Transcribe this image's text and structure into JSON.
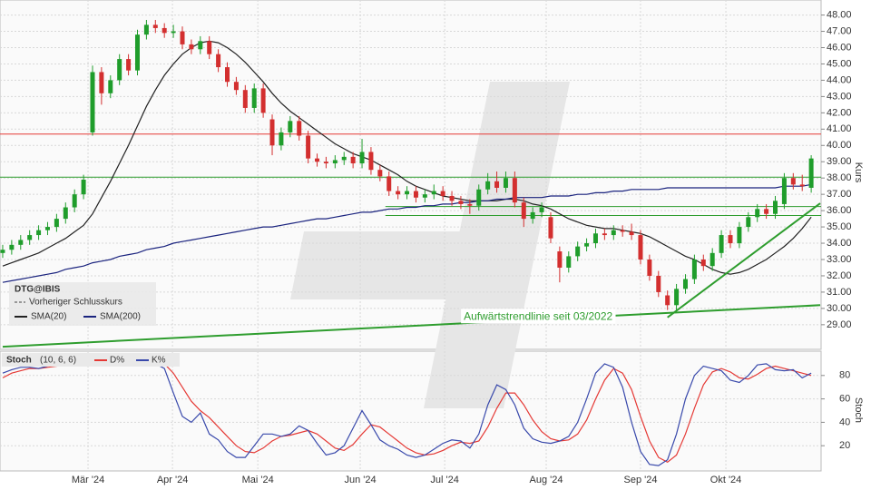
{
  "chart_data": [
    {
      "type": "candlestick",
      "title": "DTG@IBIS",
      "legend_note": "Vorheriger Schlusskurs",
      "ylabel": "Kurs",
      "up_color": "#1f9d2b",
      "down_color": "#d32f2f",
      "xlim": [
        -0.3,
        91.1
      ],
      "ylim": [
        27.6,
        48.7
      ],
      "xticks": [
        {
          "value": 9.5,
          "label": "Mär '24"
        },
        {
          "value": 18.9,
          "label": "Apr '24"
        },
        {
          "value": 28.4,
          "label": "Mai '24"
        },
        {
          "value": 39.8,
          "label": "Jun '24"
        },
        {
          "value": 49.2,
          "label": "Jul '24"
        },
        {
          "value": 60.5,
          "label": "Aug '24"
        },
        {
          "value": 71,
          "label": "Sep '24"
        },
        {
          "value": 80.5,
          "label": "Okt '24"
        }
      ],
      "yticks": [
        {
          "value": 29,
          "label": "29.00"
        },
        {
          "value": 30,
          "label": "30.00"
        },
        {
          "value": 31,
          "label": "31.00"
        },
        {
          "value": 32,
          "label": "32.00"
        },
        {
          "value": 33,
          "label": "33.00"
        },
        {
          "value": 34,
          "label": "34.00"
        },
        {
          "value": 35,
          "label": "35.00"
        },
        {
          "value": 36,
          "label": "36.00"
        },
        {
          "value": 37,
          "label": "37.00"
        },
        {
          "value": 38,
          "label": "38.00"
        },
        {
          "value": 39,
          "label": "39.00"
        },
        {
          "value": 40,
          "label": "40.00"
        },
        {
          "value": 41,
          "label": "41.00"
        },
        {
          "value": 42,
          "label": "42.00"
        },
        {
          "value": 43,
          "label": "43.00"
        },
        {
          "value": 44,
          "label": "44.00"
        },
        {
          "value": 45,
          "label": "45.00"
        },
        {
          "value": 46,
          "label": "46.00"
        },
        {
          "value": 47,
          "label": "47.00"
        },
        {
          "value": 48,
          "label": "48.00"
        }
      ],
      "grid": true,
      "open": [
        33.4,
        33.6,
        33.9,
        34.2,
        34.5,
        34.8,
        35.0,
        35.5,
        36.2,
        37.0,
        40.8,
        44.5,
        43.2,
        44.0,
        45.3,
        44.6,
        46.8,
        47.4,
        47.2,
        46.9,
        47.0,
        46.2,
        45.9,
        46.4,
        45.6,
        44.8,
        43.9,
        43.4,
        42.3,
        43.5,
        41.6,
        40.0,
        40.8,
        41.5,
        40.6,
        39.2,
        39.0,
        38.9,
        39.1,
        39.3,
        38.9,
        39.6,
        38.5,
        38.1,
        37.2,
        37.0,
        37.2,
        36.8,
        37.0,
        37.2,
        36.9,
        36.6,
        36.4,
        36.3,
        37.3,
        37.8,
        37.4,
        38.0,
        36.5,
        35.5,
        35.9,
        35.6,
        33.5,
        32.5,
        33.2,
        33.8,
        34.0,
        34.6,
        34.5,
        34.8,
        34.7,
        34.5,
        33.0,
        32.0,
        30.8,
        30.2,
        31.2,
        31.8,
        33.0,
        32.6,
        33.4,
        34.5,
        34.0,
        35.0,
        35.6,
        36.1,
        35.8,
        36.4,
        38.0,
        37.6,
        37.4
      ],
      "high": [
        33.9,
        34.2,
        34.5,
        34.8,
        35.1,
        35.3,
        35.8,
        36.5,
        37.3,
        38.2,
        44.9,
        44.8,
        44.3,
        45.6,
        45.6,
        47.1,
        47.7,
        47.7,
        47.5,
        47.4,
        47.3,
        46.5,
        46.7,
        46.7,
        45.9,
        45.1,
        44.2,
        43.7,
        43.8,
        43.8,
        41.9,
        41.1,
        41.8,
        41.8,
        40.9,
        39.5,
        39.3,
        39.4,
        39.6,
        39.6,
        40.4,
        39.9,
        38.8,
        38.4,
        37.5,
        37.5,
        37.5,
        37.3,
        37.6,
        37.5,
        37.2,
        36.9,
        36.7,
        37.6,
        38.3,
        38.4,
        38.4,
        38.4,
        36.8,
        36.2,
        36.5,
        35.9,
        33.8,
        33.5,
        34.1,
        34.3,
        34.9,
        34.9,
        35.1,
        35.1,
        35.2,
        34.8,
        33.3,
        32.3,
        31.1,
        31.5,
        32.1,
        33.3,
        33.3,
        33.7,
        34.8,
        34.8,
        35.3,
        35.9,
        36.4,
        36.4,
        36.9,
        38.3,
        38.3,
        38.2,
        39.4
      ],
      "low": [
        33.1,
        33.3,
        33.6,
        33.9,
        34.2,
        34.5,
        34.7,
        35.2,
        35.9,
        36.7,
        40.6,
        42.5,
        42.9,
        43.7,
        44.3,
        44.3,
        46.5,
        46.9,
        46.6,
        46.6,
        45.9,
        45.6,
        45.6,
        45.3,
        44.5,
        43.6,
        43.1,
        42.0,
        42.0,
        41.7,
        39.4,
        39.7,
        40.5,
        40.3,
        38.9,
        38.7,
        38.6,
        38.6,
        38.8,
        38.6,
        38.6,
        38.2,
        37.8,
        36.9,
        36.7,
        36.7,
        36.5,
        36.5,
        36.7,
        36.6,
        36.3,
        36.1,
        35.8,
        36.0,
        37.0,
        37.1,
        37.1,
        36.2,
        35.0,
        35.2,
        35.6,
        34.0,
        31.6,
        32.2,
        32.9,
        33.5,
        33.7,
        34.2,
        34.2,
        34.4,
        34.2,
        32.7,
        31.7,
        30.7,
        29.9,
        29.9,
        30.9,
        31.5,
        32.3,
        32.3,
        33.1,
        33.7,
        33.7,
        34.7,
        35.3,
        35.5,
        35.5,
        36.1,
        37.3,
        37.2,
        37.1
      ],
      "close": [
        33.6,
        33.9,
        34.2,
        34.5,
        34.8,
        35.0,
        35.5,
        36.2,
        37.0,
        37.9,
        44.5,
        43.2,
        44.0,
        45.3,
        44.6,
        46.8,
        47.4,
        47.2,
        46.9,
        47.0,
        46.2,
        45.9,
        46.4,
        45.6,
        44.8,
        43.9,
        43.4,
        42.3,
        43.5,
        42.0,
        40.0,
        40.8,
        41.5,
        40.6,
        39.2,
        39.0,
        38.9,
        39.1,
        39.3,
        38.9,
        39.6,
        38.5,
        38.1,
        37.2,
        37.0,
        37.2,
        36.8,
        37.0,
        37.2,
        36.9,
        36.6,
        36.4,
        36.3,
        37.3,
        37.8,
        37.4,
        38.0,
        36.5,
        35.5,
        35.9,
        36.2,
        34.3,
        32.5,
        33.2,
        33.8,
        34.0,
        34.6,
        34.5,
        34.8,
        34.7,
        34.5,
        33.0,
        32.0,
        31.0,
        30.2,
        31.2,
        31.8,
        33.0,
        32.6,
        33.4,
        34.5,
        34.0,
        35.0,
        35.6,
        36.1,
        35.8,
        36.6,
        38.0,
        37.6,
        37.5,
        39.2
      ],
      "series": [
        {
          "name": "SMA(20)",
          "color": "#222222",
          "values": [
            32.6,
            32.8,
            33.0,
            33.2,
            33.4,
            33.7,
            34.0,
            34.3,
            34.7,
            35.1,
            35.8,
            36.8,
            37.8,
            38.9,
            40.0,
            41.2,
            42.4,
            43.4,
            44.3,
            45.0,
            45.6,
            46.0,
            46.3,
            46.4,
            46.3,
            46.0,
            45.6,
            45.1,
            44.5,
            43.9,
            43.2,
            42.6,
            42.1,
            41.7,
            41.3,
            40.9,
            40.5,
            40.1,
            39.8,
            39.5,
            39.3,
            39.1,
            38.8,
            38.5,
            38.2,
            37.8,
            37.5,
            37.3,
            37.1,
            36.9,
            36.8,
            36.7,
            36.6,
            36.6,
            36.6,
            36.6,
            36.7,
            36.7,
            36.6,
            36.4,
            36.3,
            36.1,
            35.8,
            35.5,
            35.3,
            35.1,
            35.0,
            34.9,
            34.9,
            34.8,
            34.7,
            34.6,
            34.4,
            34.1,
            33.8,
            33.5,
            33.2,
            33.0,
            32.7,
            32.4,
            32.2,
            32.1,
            32.2,
            32.4,
            32.7,
            33.0,
            33.4,
            33.8,
            34.3,
            34.9,
            35.6
          ]
        },
        {
          "name": "SMA(200)",
          "color": "#1a237e",
          "values": [
            31.6,
            31.7,
            31.8,
            31.9,
            32.0,
            32.1,
            32.2,
            32.4,
            32.5,
            32.6,
            32.8,
            32.9,
            33.0,
            33.2,
            33.3,
            33.4,
            33.6,
            33.7,
            33.8,
            34.0,
            34.1,
            34.2,
            34.3,
            34.4,
            34.5,
            34.6,
            34.7,
            34.8,
            34.9,
            35.0,
            35.0,
            35.1,
            35.2,
            35.3,
            35.4,
            35.5,
            35.5,
            35.6,
            35.7,
            35.8,
            35.9,
            35.9,
            36.0,
            36.1,
            36.1,
            36.2,
            36.2,
            36.3,
            36.3,
            36.4,
            36.4,
            36.5,
            36.5,
            36.6,
            36.6,
            36.7,
            36.7,
            36.8,
            36.8,
            36.8,
            36.8,
            36.9,
            36.9,
            36.9,
            37.0,
            37.0,
            37.1,
            37.1,
            37.2,
            37.2,
            37.3,
            37.3,
            37.3,
            37.3,
            37.4,
            37.4,
            37.4,
            37.4,
            37.4,
            37.4,
            37.4,
            37.4,
            37.4,
            37.4,
            37.4,
            37.4,
            37.4,
            37.5,
            37.5,
            37.5,
            37.6
          ]
        }
      ],
      "levels": [
        {
          "value": 40.7,
          "color": "#e53935"
        },
        {
          "value": 38.05,
          "color": "#2e9d2e"
        },
        {
          "value": 36.25,
          "color": "#2e9d2e",
          "from": 42.6
        },
        {
          "value": 35.7,
          "color": "#2e9d2e",
          "from": 42.6
        }
      ],
      "trendlines": [
        {
          "x": [
            74,
            91
          ],
          "y": [
            29.45,
            36.45
          ],
          "color": "#2e9d2e"
        },
        {
          "x": [
            0,
            91
          ],
          "y": [
            27.65,
            30.2
          ],
          "color": "#2e9d2e",
          "label": "Aufwärtstrendlinie seit 03/2022"
        }
      ]
    },
    {
      "type": "line",
      "title": "Stoch",
      "subtitle": "(10, 6, 6)",
      "ylabel": "Stoch",
      "ylim": [
        0,
        100
      ],
      "yticks": [
        20,
        40,
        60,
        80
      ],
      "grid": true,
      "series": [
        {
          "name": "D%",
          "color": "#e53935",
          "values": [
            78,
            82,
            84,
            86,
            86,
            87,
            88,
            89,
            90,
            90,
            90,
            90,
            90,
            91,
            92,
            93,
            93,
            92,
            90,
            82,
            70,
            58,
            50,
            44,
            36,
            28,
            20,
            15,
            14,
            18,
            24,
            28,
            29,
            31,
            33,
            30,
            24,
            18,
            16,
            21,
            30,
            38,
            36,
            30,
            24,
            18,
            14,
            12,
            13,
            16,
            20,
            23,
            22,
            24,
            36,
            52,
            65,
            65,
            55,
            42,
            32,
            26,
            24,
            25,
            30,
            42,
            60,
            76,
            86,
            82,
            68,
            45,
            24,
            10,
            6,
            12,
            30,
            52,
            72,
            83,
            86,
            83,
            78,
            77,
            81,
            86,
            88,
            86,
            84,
            82,
            80
          ]
        },
        {
          "name": "K%",
          "color": "#3949ab",
          "values": [
            82,
            85,
            87,
            87,
            86,
            88,
            90,
            90,
            89,
            90,
            91,
            89,
            90,
            92,
            93,
            94,
            92,
            90,
            86,
            65,
            45,
            40,
            48,
            30,
            25,
            15,
            10,
            10,
            20,
            30,
            30,
            28,
            30,
            37,
            33,
            22,
            12,
            14,
            20,
            35,
            50,
            38,
            25,
            20,
            17,
            12,
            10,
            12,
            17,
            22,
            25,
            24,
            18,
            30,
            55,
            72,
            68,
            55,
            35,
            26,
            23,
            22,
            24,
            28,
            40,
            60,
            82,
            90,
            87,
            70,
            40,
            15,
            4,
            3,
            8,
            30,
            60,
            80,
            88,
            86,
            84,
            76,
            74,
            80,
            89,
            90,
            85,
            84,
            85,
            78,
            82
          ]
        }
      ]
    }
  ]
}
